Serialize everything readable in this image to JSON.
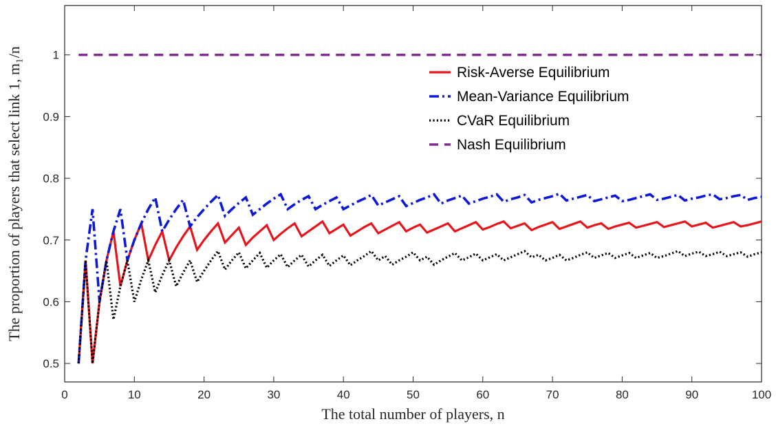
{
  "chart_data": {
    "type": "line",
    "xlabel": "The total number of players, n",
    "ylabel": "The proportion of players that select link 1, m₁/n",
    "xlim": [
      0,
      100
    ],
    "ylim": [
      0.47,
      1.08
    ],
    "xticks": [
      0,
      10,
      20,
      30,
      40,
      50,
      60,
      70,
      80,
      90,
      100
    ],
    "yticks": [
      0.5,
      0.6,
      0.7,
      0.8,
      0.9,
      1
    ],
    "grid": false,
    "legend_position": "top-right",
    "series": [
      {
        "name": "Risk-Averse Equilibrium",
        "color": "#e8141c",
        "style": "solid",
        "points": [
          [
            2,
            0.5
          ],
          [
            3,
            0.667
          ],
          [
            4,
            0.5
          ],
          [
            5,
            0.6
          ],
          [
            6,
            0.667
          ],
          [
            7,
            0.714
          ],
          [
            8,
            0.625
          ],
          [
            9,
            0.667
          ],
          [
            10,
            0.7
          ],
          [
            11,
            0.727
          ],
          [
            12,
            0.667
          ],
          [
            13,
            0.692
          ],
          [
            14,
            0.714
          ],
          [
            15,
            0.667
          ],
          [
            16,
            0.688
          ],
          [
            17,
            0.706
          ],
          [
            18,
            0.722
          ],
          [
            19,
            0.684
          ],
          [
            20,
            0.7
          ],
          [
            21,
            0.714
          ],
          [
            22,
            0.727
          ],
          [
            23,
            0.696
          ],
          [
            24,
            0.708
          ],
          [
            25,
            0.72
          ],
          [
            26,
            0.692
          ],
          [
            27,
            0.704
          ],
          [
            28,
            0.714
          ],
          [
            29,
            0.724
          ],
          [
            30,
            0.7
          ],
          [
            31,
            0.71
          ],
          [
            32,
            0.719
          ],
          [
            33,
            0.727
          ],
          [
            34,
            0.706
          ],
          [
            35,
            0.714
          ],
          [
            36,
            0.722
          ],
          [
            37,
            0.73
          ],
          [
            38,
            0.711
          ],
          [
            39,
            0.718
          ],
          [
            40,
            0.725
          ],
          [
            41,
            0.707
          ],
          [
            42,
            0.714
          ],
          [
            43,
            0.721
          ],
          [
            44,
            0.727
          ],
          [
            45,
            0.711
          ],
          [
            46,
            0.717
          ],
          [
            47,
            0.723
          ],
          [
            48,
            0.729
          ],
          [
            49,
            0.714
          ],
          [
            50,
            0.72
          ],
          [
            51,
            0.725
          ],
          [
            52,
            0.712
          ],
          [
            53,
            0.717
          ],
          [
            54,
            0.722
          ],
          [
            55,
            0.727
          ],
          [
            56,
            0.714
          ],
          [
            57,
            0.719
          ],
          [
            58,
            0.724
          ],
          [
            59,
            0.729
          ],
          [
            60,
            0.717
          ],
          [
            61,
            0.721
          ],
          [
            62,
            0.726
          ],
          [
            63,
            0.73
          ],
          [
            64,
            0.719
          ],
          [
            65,
            0.723
          ],
          [
            66,
            0.727
          ],
          [
            67,
            0.716
          ],
          [
            68,
            0.721
          ],
          [
            69,
            0.725
          ],
          [
            70,
            0.729
          ],
          [
            71,
            0.718
          ],
          [
            72,
            0.722
          ],
          [
            73,
            0.726
          ],
          [
            74,
            0.73
          ],
          [
            75,
            0.72
          ],
          [
            76,
            0.724
          ],
          [
            77,
            0.727
          ],
          [
            78,
            0.718
          ],
          [
            79,
            0.722
          ],
          [
            80,
            0.725
          ],
          [
            81,
            0.728
          ],
          [
            82,
            0.72
          ],
          [
            83,
            0.723
          ],
          [
            84,
            0.726
          ],
          [
            85,
            0.729
          ],
          [
            86,
            0.721
          ],
          [
            87,
            0.724
          ],
          [
            88,
            0.727
          ],
          [
            89,
            0.73
          ],
          [
            90,
            0.722
          ],
          [
            91,
            0.725
          ],
          [
            92,
            0.728
          ],
          [
            93,
            0.72
          ],
          [
            94,
            0.723
          ],
          [
            95,
            0.726
          ],
          [
            96,
            0.729
          ],
          [
            97,
            0.722
          ],
          [
            98,
            0.724
          ],
          [
            99,
            0.727
          ],
          [
            100,
            0.73
          ]
        ]
      },
      {
        "name": "Mean-Variance Equilibrium",
        "color": "#0d19d6",
        "style": "dashdot",
        "points": [
          [
            2,
            0.5
          ],
          [
            3,
            0.667
          ],
          [
            4,
            0.75
          ],
          [
            5,
            0.6
          ],
          [
            6,
            0.667
          ],
          [
            7,
            0.714
          ],
          [
            8,
            0.75
          ],
          [
            9,
            0.667
          ],
          [
            10,
            0.7
          ],
          [
            11,
            0.727
          ],
          [
            12,
            0.75
          ],
          [
            13,
            0.769
          ],
          [
            14,
            0.714
          ],
          [
            15,
            0.733
          ],
          [
            16,
            0.75
          ],
          [
            17,
            0.765
          ],
          [
            18,
            0.722
          ],
          [
            19,
            0.737
          ],
          [
            20,
            0.75
          ],
          [
            21,
            0.762
          ],
          [
            22,
            0.773
          ],
          [
            23,
            0.739
          ],
          [
            24,
            0.75
          ],
          [
            25,
            0.76
          ],
          [
            26,
            0.769
          ],
          [
            27,
            0.741
          ],
          [
            28,
            0.75
          ],
          [
            29,
            0.759
          ],
          [
            30,
            0.767
          ],
          [
            31,
            0.774
          ],
          [
            32,
            0.75
          ],
          [
            33,
            0.758
          ],
          [
            34,
            0.765
          ],
          [
            35,
            0.771
          ],
          [
            36,
            0.75
          ],
          [
            37,
            0.757
          ],
          [
            38,
            0.763
          ],
          [
            39,
            0.769
          ],
          [
            40,
            0.75
          ],
          [
            41,
            0.756
          ],
          [
            42,
            0.762
          ],
          [
            43,
            0.767
          ],
          [
            44,
            0.773
          ],
          [
            45,
            0.756
          ],
          [
            46,
            0.761
          ],
          [
            47,
            0.766
          ],
          [
            48,
            0.771
          ],
          [
            49,
            0.755
          ],
          [
            50,
            0.76
          ],
          [
            51,
            0.765
          ],
          [
            52,
            0.769
          ],
          [
            53,
            0.774
          ],
          [
            54,
            0.759
          ],
          [
            55,
            0.764
          ],
          [
            56,
            0.768
          ],
          [
            57,
            0.772
          ],
          [
            58,
            0.759
          ],
          [
            59,
            0.763
          ],
          [
            60,
            0.767
          ],
          [
            61,
            0.77
          ],
          [
            62,
            0.774
          ],
          [
            63,
            0.762
          ],
          [
            64,
            0.766
          ],
          [
            65,
            0.769
          ],
          [
            66,
            0.773
          ],
          [
            67,
            0.761
          ],
          [
            68,
            0.765
          ],
          [
            69,
            0.768
          ],
          [
            70,
            0.771
          ],
          [
            71,
            0.775
          ],
          [
            72,
            0.764
          ],
          [
            73,
            0.767
          ],
          [
            74,
            0.77
          ],
          [
            75,
            0.773
          ],
          [
            76,
            0.763
          ],
          [
            77,
            0.766
          ],
          [
            78,
            0.769
          ],
          [
            79,
            0.772
          ],
          [
            80,
            0.763
          ],
          [
            81,
            0.765
          ],
          [
            82,
            0.768
          ],
          [
            83,
            0.771
          ],
          [
            84,
            0.774
          ],
          [
            85,
            0.765
          ],
          [
            86,
            0.767
          ],
          [
            87,
            0.77
          ],
          [
            88,
            0.773
          ],
          [
            89,
            0.764
          ],
          [
            90,
            0.767
          ],
          [
            91,
            0.769
          ],
          [
            92,
            0.772
          ],
          [
            93,
            0.774
          ],
          [
            94,
            0.766
          ],
          [
            95,
            0.768
          ],
          [
            96,
            0.771
          ],
          [
            97,
            0.773
          ],
          [
            98,
            0.765
          ],
          [
            99,
            0.768
          ],
          [
            100,
            0.77
          ]
        ]
      },
      {
        "name": "CVaR Equilibrium",
        "color": "#000000",
        "style": "dotted",
        "points": [
          [
            2,
            0.5
          ],
          [
            3,
            0.667
          ],
          [
            4,
            0.5
          ],
          [
            5,
            0.6
          ],
          [
            6,
            0.667
          ],
          [
            7,
            0.571
          ],
          [
            8,
            0.625
          ],
          [
            9,
            0.667
          ],
          [
            10,
            0.6
          ],
          [
            11,
            0.636
          ],
          [
            12,
            0.667
          ],
          [
            13,
            0.615
          ],
          [
            14,
            0.643
          ],
          [
            15,
            0.667
          ],
          [
            16,
            0.625
          ],
          [
            17,
            0.647
          ],
          [
            18,
            0.667
          ],
          [
            19,
            0.632
          ],
          [
            20,
            0.65
          ],
          [
            21,
            0.667
          ],
          [
            22,
            0.682
          ],
          [
            23,
            0.652
          ],
          [
            24,
            0.667
          ],
          [
            25,
            0.68
          ],
          [
            26,
            0.654
          ],
          [
            27,
            0.667
          ],
          [
            28,
            0.679
          ],
          [
            29,
            0.655
          ],
          [
            30,
            0.667
          ],
          [
            31,
            0.677
          ],
          [
            32,
            0.656
          ],
          [
            33,
            0.667
          ],
          [
            34,
            0.676
          ],
          [
            35,
            0.657
          ],
          [
            36,
            0.667
          ],
          [
            37,
            0.676
          ],
          [
            38,
            0.658
          ],
          [
            39,
            0.667
          ],
          [
            40,
            0.675
          ],
          [
            41,
            0.659
          ],
          [
            42,
            0.667
          ],
          [
            43,
            0.674
          ],
          [
            44,
            0.682
          ],
          [
            45,
            0.667
          ],
          [
            46,
            0.674
          ],
          [
            47,
            0.66
          ],
          [
            48,
            0.667
          ],
          [
            49,
            0.673
          ],
          [
            50,
            0.68
          ],
          [
            51,
            0.667
          ],
          [
            52,
            0.673
          ],
          [
            53,
            0.66
          ],
          [
            54,
            0.667
          ],
          [
            55,
            0.673
          ],
          [
            56,
            0.679
          ],
          [
            57,
            0.667
          ],
          [
            58,
            0.672
          ],
          [
            59,
            0.678
          ],
          [
            60,
            0.667
          ],
          [
            61,
            0.672
          ],
          [
            62,
            0.677
          ],
          [
            63,
            0.667
          ],
          [
            64,
            0.672
          ],
          [
            65,
            0.677
          ],
          [
            66,
            0.682
          ],
          [
            67,
            0.672
          ],
          [
            68,
            0.676
          ],
          [
            69,
            0.667
          ],
          [
            70,
            0.671
          ],
          [
            71,
            0.676
          ],
          [
            72,
            0.667
          ],
          [
            73,
            0.671
          ],
          [
            74,
            0.676
          ],
          [
            75,
            0.68
          ],
          [
            76,
            0.671
          ],
          [
            77,
            0.675
          ],
          [
            78,
            0.679
          ],
          [
            79,
            0.671
          ],
          [
            80,
            0.675
          ],
          [
            81,
            0.679
          ],
          [
            82,
            0.671
          ],
          [
            83,
            0.675
          ],
          [
            84,
            0.679
          ],
          [
            85,
            0.671
          ],
          [
            86,
            0.674
          ],
          [
            87,
            0.678
          ],
          [
            88,
            0.682
          ],
          [
            89,
            0.674
          ],
          [
            90,
            0.678
          ],
          [
            91,
            0.681
          ],
          [
            92,
            0.674
          ],
          [
            93,
            0.677
          ],
          [
            94,
            0.681
          ],
          [
            95,
            0.674
          ],
          [
            96,
            0.677
          ],
          [
            97,
            0.68
          ],
          [
            98,
            0.673
          ],
          [
            99,
            0.677
          ],
          [
            100,
            0.68
          ]
        ]
      },
      {
        "name": "Nash Equilibrium",
        "color": "#7e2f8e",
        "style": "dashed",
        "points": [
          [
            2,
            1
          ],
          [
            100,
            1
          ]
        ]
      }
    ]
  }
}
